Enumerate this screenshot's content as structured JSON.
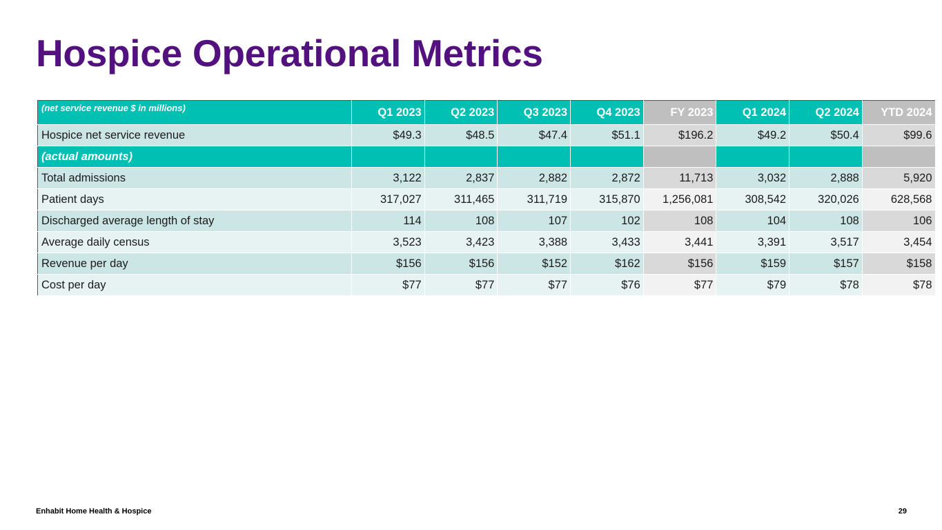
{
  "title": "Hospice Operational Metrics",
  "table": {
    "header_label": "(net service revenue $ in millions)",
    "columns": [
      "Q1 2023",
      "Q2 2023",
      "Q3 2023",
      "Q4 2023",
      "FY 2023",
      "Q1 2024",
      "Q2 2024",
      "YTD 2024"
    ],
    "revenue_row": {
      "label": "Hospice net service revenue",
      "values": [
        "$49.3",
        "$48.5",
        "$47.4",
        "$51.1",
        "$196.2",
        "$49.2",
        "$50.4",
        "$99.6"
      ]
    },
    "subheader_label": "(actual amounts)",
    "rows": [
      {
        "label": "Total admissions",
        "values": [
          "3,122",
          "2,837",
          "2,882",
          "2,872",
          "11,713",
          "3,032",
          "2,888",
          "5,920"
        ]
      },
      {
        "label": "Patient days",
        "values": [
          "317,027",
          "311,465",
          "311,719",
          "315,870",
          "1,256,081",
          "308,542",
          "320,026",
          "628,568"
        ]
      },
      {
        "label": "Discharged average length of stay",
        "values": [
          "114",
          "108",
          "107",
          "102",
          "108",
          "104",
          "108",
          "106"
        ]
      },
      {
        "label": "Average daily census",
        "values": [
          "3,523",
          "3,423",
          "3,388",
          "3,433",
          "3,441",
          "3,391",
          "3,517",
          "3,454"
        ]
      },
      {
        "label": "Revenue per day",
        "values": [
          "$156",
          "$156",
          "$152",
          "$162",
          "$156",
          "$159",
          "$157",
          "$158"
        ]
      },
      {
        "label": "Cost per day",
        "values": [
          "$77",
          "$77",
          "$77",
          "$76",
          "$77",
          "$79",
          "$78",
          "$78"
        ]
      }
    ]
  },
  "footer": {
    "company": "Enhabit Home Health & Hospice",
    "page_number": "29"
  },
  "colors": {
    "title": "#52117f",
    "teal": "#00bfb3",
    "gray_header": "#bfbfbf"
  }
}
